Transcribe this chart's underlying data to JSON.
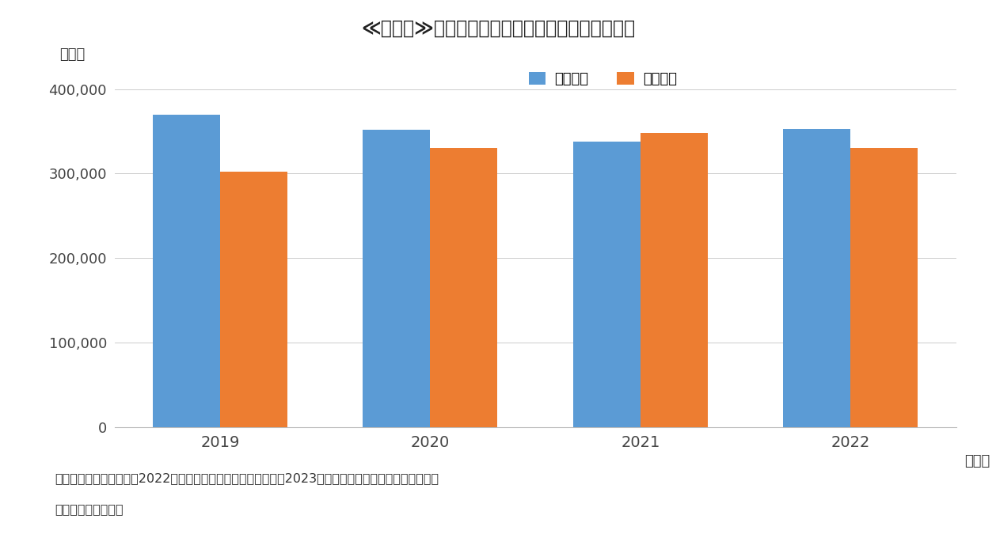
{
  "title": "≪図表３≫東京都区部における転入者数・転出者数",
  "years": [
    2019,
    2020,
    2021,
    2022
  ],
  "tenyu": [
    370000,
    352000,
    338000,
    353000
  ],
  "tenshu": [
    302000,
    330000,
    348000,
    330000
  ],
  "tenyu_label": "転入者数",
  "tenshu_label": "転出者数",
  "tenyu_color": "#5B9BD5",
  "tenshu_color": "#ED7D31",
  "ylabel": "（人）",
  "xlabel": "（年）",
  "ylim": [
    0,
    420000
  ],
  "yticks": [
    0,
    100000,
    200000,
    300000,
    400000
  ],
  "ytick_labels": [
    "0",
    "100,000",
    "200,000",
    "300,000",
    "400,000"
  ],
  "background_color": "#FFFFFF",
  "caption_line1": "（資料）总務省統計局「2022年住民基本台帳人口移動報告」（2023年）より、ＳＯＭＰＯインスティテ",
  "caption_line2": "ュート・プラス作成",
  "bar_width": 0.32
}
